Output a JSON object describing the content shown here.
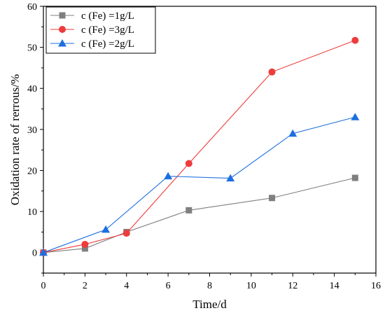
{
  "chart_data": {
    "type": "line",
    "xlabel": "Time/d",
    "ylabel": "Oxidation rate of rerrous/%",
    "xlim": [
      0,
      16
    ],
    "ylim": [
      -5,
      60
    ],
    "x_ticks": [
      0,
      2,
      4,
      6,
      8,
      10,
      12,
      14,
      16
    ],
    "y_ticks": [
      0,
      10,
      20,
      30,
      40,
      50,
      60
    ],
    "grid": false,
    "legend_position": "top-left",
    "series": [
      {
        "name": "c (Fe) =1g/L",
        "color": "#7f7f7f",
        "marker": "square",
        "x": [
          0,
          2,
          4,
          7,
          11,
          15
        ],
        "y": [
          0,
          1,
          5,
          10.3,
          13.3,
          18.2
        ]
      },
      {
        "name": "c (Fe) =3g/L",
        "color": "#ee3b3b",
        "marker": "circle",
        "x": [
          0,
          2,
          4,
          7,
          11,
          15
        ],
        "y": [
          0,
          2,
          4.7,
          21.7,
          44,
          51.7
        ]
      },
      {
        "name": "c (Fe) =2g/L",
        "color": "#1e6fe0",
        "marker": "triangle",
        "x": [
          0,
          3,
          6,
          9,
          12,
          15
        ],
        "y": [
          0,
          5.6,
          18.6,
          18.1,
          29,
          33
        ]
      }
    ]
  }
}
